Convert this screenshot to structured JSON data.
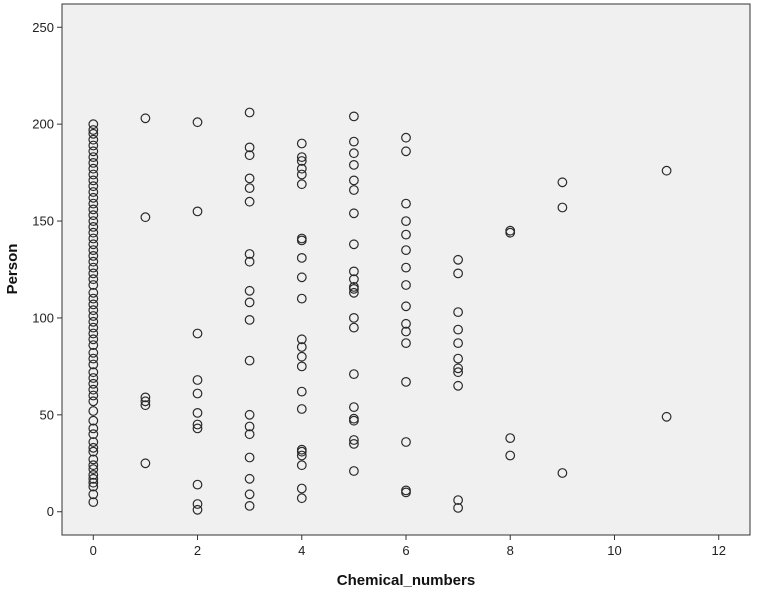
{
  "chart_data": {
    "type": "scatter",
    "xlabel": "Chemical_numbers",
    "ylabel": "Person",
    "xlim": [
      -0.6,
      12.6
    ],
    "ylim": [
      -12,
      262
    ],
    "xticks": [
      0,
      2,
      4,
      6,
      8,
      10,
      12
    ],
    "yticks": [
      0,
      50,
      100,
      150,
      200,
      250
    ],
    "grid": false,
    "colors": {
      "plot_background": "#f0f0f0",
      "marker_stroke": "#2a2a2a",
      "axis": "#333333"
    },
    "points": [
      [
        0,
        5
      ],
      [
        0,
        9
      ],
      [
        0,
        13
      ],
      [
        0,
        15
      ],
      [
        0,
        17
      ],
      [
        0,
        19
      ],
      [
        0,
        22
      ],
      [
        0,
        24
      ],
      [
        0,
        27
      ],
      [
        0,
        31
      ],
      [
        0,
        33
      ],
      [
        0,
        36
      ],
      [
        0,
        40
      ],
      [
        0,
        43
      ],
      [
        0,
        47
      ],
      [
        0,
        52
      ],
      [
        0,
        57
      ],
      [
        0,
        60
      ],
      [
        0,
        63
      ],
      [
        0,
        66
      ],
      [
        0,
        69
      ],
      [
        0,
        72
      ],
      [
        0,
        76
      ],
      [
        0,
        79
      ],
      [
        0,
        82
      ],
      [
        0,
        86
      ],
      [
        0,
        89
      ],
      [
        0,
        92
      ],
      [
        0,
        95
      ],
      [
        0,
        98
      ],
      [
        0,
        101
      ],
      [
        0,
        104
      ],
      [
        0,
        107
      ],
      [
        0,
        110
      ],
      [
        0,
        113
      ],
      [
        0,
        117
      ],
      [
        0,
        120
      ],
      [
        0,
        123
      ],
      [
        0,
        126
      ],
      [
        0,
        129
      ],
      [
        0,
        132
      ],
      [
        0,
        135
      ],
      [
        0,
        138
      ],
      [
        0,
        141
      ],
      [
        0,
        144
      ],
      [
        0,
        147
      ],
      [
        0,
        150
      ],
      [
        0,
        153
      ],
      [
        0,
        156
      ],
      [
        0,
        159
      ],
      [
        0,
        162
      ],
      [
        0,
        165
      ],
      [
        0,
        168
      ],
      [
        0,
        171
      ],
      [
        0,
        174
      ],
      [
        0,
        177
      ],
      [
        0,
        180
      ],
      [
        0,
        183
      ],
      [
        0,
        186
      ],
      [
        0,
        189
      ],
      [
        0,
        192
      ],
      [
        0,
        195
      ],
      [
        0,
        197
      ],
      [
        0,
        200
      ],
      [
        1,
        25
      ],
      [
        1,
        55
      ],
      [
        1,
        57
      ],
      [
        1,
        59
      ],
      [
        1,
        152
      ],
      [
        1,
        203
      ],
      [
        2,
        1
      ],
      [
        2,
        4
      ],
      [
        2,
        14
      ],
      [
        2,
        43
      ],
      [
        2,
        45
      ],
      [
        2,
        51
      ],
      [
        2,
        61
      ],
      [
        2,
        68
      ],
      [
        2,
        92
      ],
      [
        2,
        155
      ],
      [
        2,
        201
      ],
      [
        3,
        3
      ],
      [
        3,
        9
      ],
      [
        3,
        17
      ],
      [
        3,
        28
      ],
      [
        3,
        40
      ],
      [
        3,
        44
      ],
      [
        3,
        50
      ],
      [
        3,
        78
      ],
      [
        3,
        99
      ],
      [
        3,
        108
      ],
      [
        3,
        114
      ],
      [
        3,
        129
      ],
      [
        3,
        133
      ],
      [
        3,
        160
      ],
      [
        3,
        167
      ],
      [
        3,
        172
      ],
      [
        3,
        184
      ],
      [
        3,
        188
      ],
      [
        3,
        206
      ],
      [
        4,
        7
      ],
      [
        4,
        12
      ],
      [
        4,
        24
      ],
      [
        4,
        29
      ],
      [
        4,
        31
      ],
      [
        4,
        32
      ],
      [
        4,
        53
      ],
      [
        4,
        62
      ],
      [
        4,
        75
      ],
      [
        4,
        80
      ],
      [
        4,
        85
      ],
      [
        4,
        89
      ],
      [
        4,
        110
      ],
      [
        4,
        121
      ],
      [
        4,
        131
      ],
      [
        4,
        140
      ],
      [
        4,
        141
      ],
      [
        4,
        169
      ],
      [
        4,
        174
      ],
      [
        4,
        177
      ],
      [
        4,
        181
      ],
      [
        4,
        183
      ],
      [
        4,
        190
      ],
      [
        5,
        21
      ],
      [
        5,
        35
      ],
      [
        5,
        37
      ],
      [
        5,
        47
      ],
      [
        5,
        48
      ],
      [
        5,
        54
      ],
      [
        5,
        71
      ],
      [
        5,
        95
      ],
      [
        5,
        100
      ],
      [
        5,
        113
      ],
      [
        5,
        115
      ],
      [
        5,
        116
      ],
      [
        5,
        120
      ],
      [
        5,
        124
      ],
      [
        5,
        138
      ],
      [
        5,
        154
      ],
      [
        5,
        166
      ],
      [
        5,
        171
      ],
      [
        5,
        179
      ],
      [
        5,
        185
      ],
      [
        5,
        191
      ],
      [
        5,
        204
      ],
      [
        6,
        10
      ],
      [
        6,
        11
      ],
      [
        6,
        36
      ],
      [
        6,
        67
      ],
      [
        6,
        87
      ],
      [
        6,
        93
      ],
      [
        6,
        97
      ],
      [
        6,
        106
      ],
      [
        6,
        117
      ],
      [
        6,
        126
      ],
      [
        6,
        135
      ],
      [
        6,
        143
      ],
      [
        6,
        150
      ],
      [
        6,
        159
      ],
      [
        6,
        186
      ],
      [
        6,
        193
      ],
      [
        7,
        2
      ],
      [
        7,
        6
      ],
      [
        7,
        65
      ],
      [
        7,
        72
      ],
      [
        7,
        74
      ],
      [
        7,
        79
      ],
      [
        7,
        87
      ],
      [
        7,
        94
      ],
      [
        7,
        103
      ],
      [
        7,
        123
      ],
      [
        7,
        130
      ],
      [
        8,
        29
      ],
      [
        8,
        38
      ],
      [
        8,
        144
      ],
      [
        8,
        145
      ],
      [
        9,
        20
      ],
      [
        9,
        157
      ],
      [
        9,
        170
      ],
      [
        11,
        49
      ],
      [
        11,
        176
      ]
    ]
  }
}
